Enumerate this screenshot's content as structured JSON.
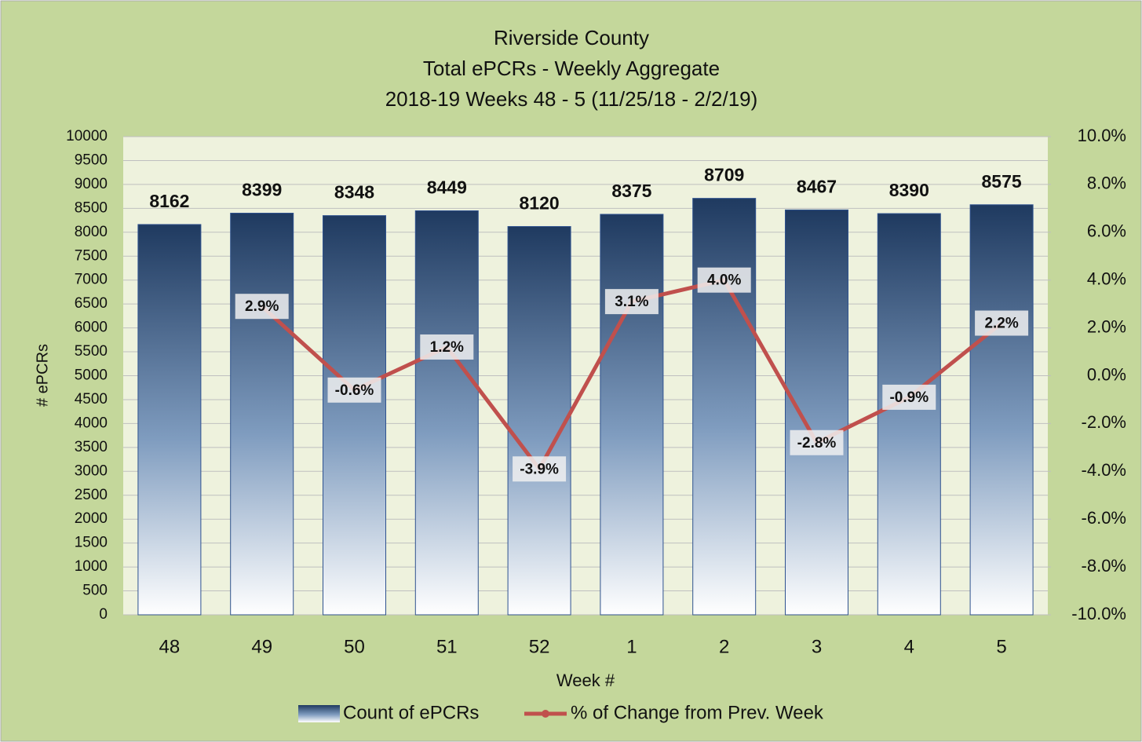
{
  "chart_data": {
    "type": "bar",
    "title": [
      "Riverside County",
      "Total ePCRs - Weekly Aggregate",
      "2018-19 Weeks 48 - 5 (11/25/18 - 2/2/19)"
    ],
    "x_label": "Week #",
    "y_label": "# ePCRs",
    "categories": [
      "48",
      "49",
      "50",
      "51",
      "52",
      "1",
      "2",
      "3",
      "4",
      "5"
    ],
    "series": [
      {
        "name": "Count of ePCRs",
        "color": "#1f3864",
        "values": [
          8162,
          8399,
          8348,
          8449,
          8120,
          8375,
          8709,
          8467,
          8390,
          8575
        ]
      },
      {
        "name": "% of Change from Prev. Week",
        "color": "#c0504d",
        "type": "line",
        "axis": "y2",
        "values": [
          null,
          2.9,
          -0.6,
          1.2,
          -3.9,
          3.1,
          4.0,
          -2.8,
          -0.9,
          2.2
        ],
        "value_labels": [
          null,
          "2.9%",
          "-0.6%",
          "1.2%",
          "-3.9%",
          "3.1%",
          "4.0%",
          "-2.8%",
          "-0.9%",
          "2.2%"
        ]
      }
    ],
    "ylim": [
      0,
      10000
    ],
    "yticks": [
      0,
      500,
      1000,
      1500,
      2000,
      2500,
      3000,
      3500,
      4000,
      4500,
      5000,
      5500,
      6000,
      6500,
      7000,
      7500,
      8000,
      8500,
      9000,
      9500,
      10000
    ],
    "y2lim": [
      -10,
      10
    ],
    "y2ticks": [
      {
        "value": -10,
        "label": "-10.0%"
      },
      {
        "value": -8,
        "label": "-8.0%"
      },
      {
        "value": -6,
        "label": "-6.0%"
      },
      {
        "value": -4,
        "label": "-4.0%"
      },
      {
        "value": -2,
        "label": "-2.0%"
      },
      {
        "value": 0,
        "label": "0.0%"
      },
      {
        "value": 2,
        "label": "2.0%"
      },
      {
        "value": 4,
        "label": "4.0%"
      },
      {
        "value": 6,
        "label": "6.0%"
      },
      {
        "value": 8,
        "label": "8.0%"
      },
      {
        "value": 10,
        "label": "10.0%"
      }
    ],
    "grid": true,
    "legend": "bottom"
  }
}
